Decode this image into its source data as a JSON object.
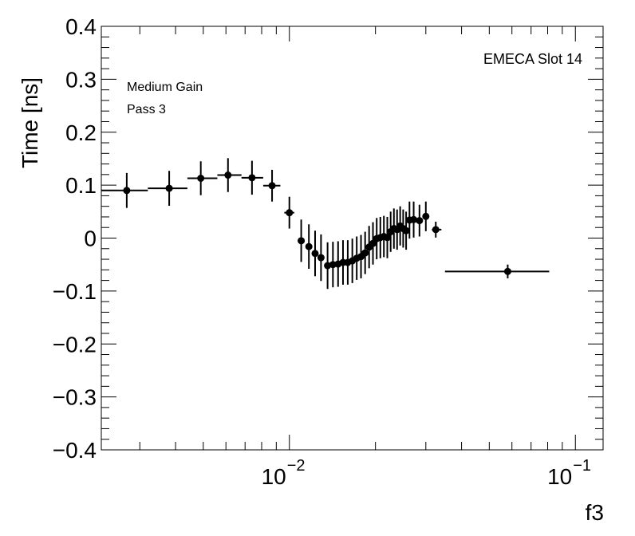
{
  "chart_data": {
    "type": "scatter",
    "title": "",
    "xlabel": "f3",
    "ylabel": "Time [ns]",
    "xscale": "log",
    "xlim": [
      0.0022,
      0.125
    ],
    "ylim": [
      -0.4,
      0.4
    ],
    "grid": false,
    "legend": "none",
    "annotations": {
      "top_right": "EMECA Slot 14",
      "line1": "Medium Gain",
      "line2": "Pass 3"
    },
    "yticks": [
      {
        "value": 0.4,
        "label": "0.4"
      },
      {
        "value": 0.3,
        "label": "0.3"
      },
      {
        "value": 0.2,
        "label": "0.2"
      },
      {
        "value": 0.1,
        "label": "0.1"
      },
      {
        "value": 0,
        "label": "0"
      },
      {
        "value": -0.1,
        "label": "−0.1"
      },
      {
        "value": -0.2,
        "label": "−0.2"
      },
      {
        "value": -0.3,
        "label": "−0.3"
      },
      {
        "value": -0.4,
        "label": "−0.4"
      }
    ],
    "xticks": [
      {
        "value": 0.01,
        "base": "10",
        "exp": "−2"
      },
      {
        "value": 0.1,
        "base": "10",
        "exp": "−1"
      }
    ],
    "color": "#000000",
    "points": [
      {
        "x": 0.0027,
        "y": 0.09,
        "xlo": 0.0022,
        "xhi": 0.0032,
        "err": 0.033
      },
      {
        "x": 0.0038,
        "y": 0.094,
        "xlo": 0.0032,
        "xhi": 0.0044,
        "err": 0.033
      },
      {
        "x": 0.0049,
        "y": 0.113,
        "xlo": 0.0044,
        "xhi": 0.0056,
        "err": 0.032
      },
      {
        "x": 0.0061,
        "y": 0.119,
        "xlo": 0.0056,
        "xhi": 0.0068,
        "err": 0.032
      },
      {
        "x": 0.0074,
        "y": 0.114,
        "xlo": 0.0068,
        "xhi": 0.0081,
        "err": 0.032
      },
      {
        "x": 0.0087,
        "y": 0.099,
        "xlo": 0.0081,
        "xhi": 0.0093,
        "err": 0.03
      },
      {
        "x": 0.01,
        "y": 0.048,
        "xlo": 0.0096,
        "xhi": 0.0104,
        "err": 0.03
      },
      {
        "x": 0.011,
        "y": -0.005,
        "xlo": 0.0107,
        "xhi": 0.0113,
        "err": 0.04
      },
      {
        "x": 0.0117,
        "y": -0.016,
        "xlo": 0.0114,
        "xhi": 0.012,
        "err": 0.042
      },
      {
        "x": 0.0123,
        "y": -0.029,
        "xlo": 0.0121,
        "xhi": 0.0125,
        "err": 0.043
      },
      {
        "x": 0.0129,
        "y": -0.037,
        "xlo": 0.0127,
        "xhi": 0.0131,
        "err": 0.044
      },
      {
        "x": 0.0136,
        "y": -0.052,
        "xlo": 0.0134,
        "xhi": 0.0138,
        "err": 0.044
      },
      {
        "x": 0.0142,
        "y": -0.05,
        "xlo": 0.014,
        "xhi": 0.0144,
        "err": 0.043
      },
      {
        "x": 0.0148,
        "y": -0.049,
        "xlo": 0.0146,
        "xhi": 0.015,
        "err": 0.043
      },
      {
        "x": 0.0154,
        "y": -0.046,
        "xlo": 0.0152,
        "xhi": 0.0156,
        "err": 0.042
      },
      {
        "x": 0.016,
        "y": -0.046,
        "xlo": 0.0158,
        "xhi": 0.0162,
        "err": 0.042
      },
      {
        "x": 0.0166,
        "y": -0.043,
        "xlo": 0.0164,
        "xhi": 0.0168,
        "err": 0.042
      },
      {
        "x": 0.0172,
        "y": -0.038,
        "xlo": 0.017,
        "xhi": 0.0174,
        "err": 0.041
      },
      {
        "x": 0.0178,
        "y": -0.035,
        "xlo": 0.0176,
        "xhi": 0.018,
        "err": 0.041
      },
      {
        "x": 0.0184,
        "y": -0.028,
        "xlo": 0.0182,
        "xhi": 0.0186,
        "err": 0.04
      },
      {
        "x": 0.019,
        "y": -0.017,
        "xlo": 0.0188,
        "xhi": 0.0192,
        "err": 0.04
      },
      {
        "x": 0.0196,
        "y": -0.01,
        "xlo": 0.0194,
        "xhi": 0.0198,
        "err": 0.04
      },
      {
        "x": 0.0202,
        "y": -0.001,
        "xlo": 0.02,
        "xhi": 0.0204,
        "err": 0.039
      },
      {
        "x": 0.0208,
        "y": 0.001,
        "xlo": 0.0206,
        "xhi": 0.021,
        "err": 0.039
      },
      {
        "x": 0.0214,
        "y": 0.003,
        "xlo": 0.0212,
        "xhi": 0.0216,
        "err": 0.039
      },
      {
        "x": 0.022,
        "y": 0.001,
        "xlo": 0.0218,
        "xhi": 0.0222,
        "err": 0.039
      },
      {
        "x": 0.0226,
        "y": 0.012,
        "xlo": 0.0224,
        "xhi": 0.0228,
        "err": 0.038
      },
      {
        "x": 0.0232,
        "y": 0.018,
        "xlo": 0.023,
        "xhi": 0.0234,
        "err": 0.038
      },
      {
        "x": 0.0238,
        "y": 0.016,
        "xlo": 0.0236,
        "xhi": 0.024,
        "err": 0.038
      },
      {
        "x": 0.0244,
        "y": 0.023,
        "xlo": 0.0242,
        "xhi": 0.0246,
        "err": 0.037
      },
      {
        "x": 0.025,
        "y": 0.018,
        "xlo": 0.0248,
        "xhi": 0.0252,
        "err": 0.036
      },
      {
        "x": 0.0256,
        "y": 0.014,
        "xlo": 0.0254,
        "xhi": 0.0258,
        "err": 0.036
      },
      {
        "x": 0.0263,
        "y": 0.034,
        "xlo": 0.026,
        "xhi": 0.0266,
        "err": 0.035
      },
      {
        "x": 0.0272,
        "y": 0.035,
        "xlo": 0.0269,
        "xhi": 0.0276,
        "err": 0.034
      },
      {
        "x": 0.0285,
        "y": 0.033,
        "xlo": 0.028,
        "xhi": 0.029,
        "err": 0.03
      },
      {
        "x": 0.03,
        "y": 0.041,
        "xlo": 0.0293,
        "xhi": 0.0307,
        "err": 0.028
      },
      {
        "x": 0.0325,
        "y": 0.016,
        "xlo": 0.0315,
        "xhi": 0.034,
        "err": 0.015
      },
      {
        "x": 0.058,
        "y": -0.063,
        "xlo": 0.035,
        "xhi": 0.081,
        "err": 0.013
      }
    ]
  }
}
